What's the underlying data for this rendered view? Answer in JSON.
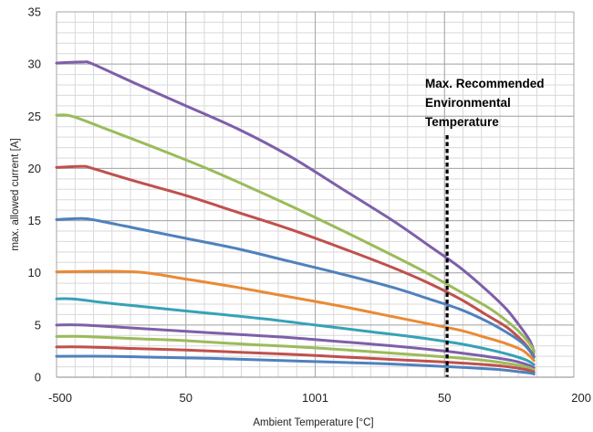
{
  "chart_data": {
    "type": "line",
    "title": "",
    "xlabel": "Ambient Temperature [°C]",
    "ylabel": "max. allowed current [A]",
    "xlim": [
      0,
      100
    ],
    "ylim": [
      0,
      35
    ],
    "x_tick_labels": [
      "-500",
      "50",
      "1001",
      "50",
      "200"
    ],
    "y_ticks": [
      0,
      5,
      10,
      15,
      20,
      25,
      30,
      35
    ],
    "grid": true,
    "legend": "none",
    "annotation": {
      "lines": [
        "Max. Recommended",
        "Environmental",
        "Temperature"
      ],
      "x": 75.5,
      "style": "dotted vertical line"
    },
    "series": [
      {
        "color": "#7e5fa9",
        "points": [
          [
            0,
            30.1
          ],
          [
            5,
            30.2
          ],
          [
            7,
            30
          ],
          [
            15,
            28.2
          ],
          [
            25,
            26
          ],
          [
            35,
            23.8
          ],
          [
            45,
            21.2
          ],
          [
            55,
            18.1
          ],
          [
            65,
            15
          ],
          [
            72,
            12.6
          ],
          [
            78,
            10.5
          ],
          [
            83,
            8.4
          ],
          [
            87,
            6.5
          ],
          [
            90,
            4.6
          ],
          [
            91.5,
            3.5
          ],
          [
            92.3,
            2.5
          ]
        ]
      },
      {
        "color": "#9bbb59",
        "points": [
          [
            0,
            25.1
          ],
          [
            3,
            25
          ],
          [
            10,
            23.7
          ],
          [
            20,
            21.8
          ],
          [
            30,
            19.8
          ],
          [
            40,
            17.6
          ],
          [
            50,
            15.3
          ],
          [
            60,
            12.9
          ],
          [
            70,
            10.4
          ],
          [
            78,
            8.2
          ],
          [
            84,
            6.5
          ],
          [
            88,
            5
          ],
          [
            90.5,
            3.8
          ],
          [
            92,
            2.8
          ],
          [
            92.3,
            2.3
          ]
        ]
      },
      {
        "color": "#c0504d",
        "points": [
          [
            0,
            20.1
          ],
          [
            5,
            20.2
          ],
          [
            7,
            20
          ],
          [
            15,
            18.8
          ],
          [
            25,
            17.4
          ],
          [
            35,
            15.8
          ],
          [
            45,
            14.2
          ],
          [
            55,
            12.4
          ],
          [
            65,
            10.5
          ],
          [
            72,
            9
          ],
          [
            78,
            7.5
          ],
          [
            83,
            6
          ],
          [
            87,
            4.8
          ],
          [
            90,
            3.5
          ],
          [
            91.5,
            2.6
          ],
          [
            92.3,
            2
          ]
        ]
      },
      {
        "color": "#4f81bd",
        "points": [
          [
            0,
            15.1
          ],
          [
            5,
            15.2
          ],
          [
            8,
            15
          ],
          [
            15,
            14.3
          ],
          [
            25,
            13.3
          ],
          [
            35,
            12.3
          ],
          [
            45,
            11.1
          ],
          [
            55,
            9.9
          ],
          [
            65,
            8.6
          ],
          [
            72,
            7.5
          ],
          [
            78,
            6.5
          ],
          [
            83,
            5.4
          ],
          [
            87,
            4.3
          ],
          [
            90,
            3.3
          ],
          [
            91.5,
            2.5
          ],
          [
            92.3,
            1.9
          ]
        ]
      },
      {
        "color": "#e98a36",
        "points": [
          [
            0,
            10.1
          ],
          [
            15,
            10.1
          ],
          [
            25,
            9.4
          ],
          [
            35,
            8.6
          ],
          [
            45,
            7.7
          ],
          [
            55,
            6.8
          ],
          [
            65,
            5.8
          ],
          [
            72,
            5.1
          ],
          [
            78,
            4.5
          ],
          [
            83,
            3.8
          ],
          [
            87,
            3.2
          ],
          [
            90,
            2.6
          ],
          [
            91.5,
            2
          ],
          [
            92.3,
            1.6
          ]
        ]
      },
      {
        "color": "#36a2b6",
        "points": [
          [
            0,
            7.5
          ],
          [
            3,
            7.5
          ],
          [
            10,
            7.1
          ],
          [
            20,
            6.6
          ],
          [
            30,
            6.1
          ],
          [
            40,
            5.6
          ],
          [
            50,
            5
          ],
          [
            60,
            4.4
          ],
          [
            70,
            3.8
          ],
          [
            78,
            3.2
          ],
          [
            84,
            2.6
          ],
          [
            88,
            2.1
          ],
          [
            91,
            1.6
          ],
          [
            92.3,
            1.2
          ]
        ]
      },
      {
        "color": "#7e5fa9",
        "points": [
          [
            0,
            5
          ],
          [
            5,
            5
          ],
          [
            15,
            4.7
          ],
          [
            25,
            4.4
          ],
          [
            35,
            4.1
          ],
          [
            45,
            3.8
          ],
          [
            55,
            3.4
          ],
          [
            65,
            3
          ],
          [
            75,
            2.5
          ],
          [
            83,
            2
          ],
          [
            88,
            1.6
          ],
          [
            91,
            1.2
          ],
          [
            92.3,
            0.9
          ]
        ]
      },
      {
        "color": "#9bbb59",
        "points": [
          [
            0,
            3.9
          ],
          [
            5,
            3.9
          ],
          [
            15,
            3.7
          ],
          [
            25,
            3.5
          ],
          [
            35,
            3.2
          ],
          [
            45,
            2.95
          ],
          [
            55,
            2.65
          ],
          [
            65,
            2.3
          ],
          [
            75,
            1.95
          ],
          [
            83,
            1.6
          ],
          [
            88,
            1.25
          ],
          [
            91,
            0.95
          ],
          [
            92.3,
            0.7
          ]
        ]
      },
      {
        "color": "#c0504d",
        "points": [
          [
            0,
            2.9
          ],
          [
            5,
            2.9
          ],
          [
            15,
            2.75
          ],
          [
            25,
            2.6
          ],
          [
            35,
            2.4
          ],
          [
            45,
            2.2
          ],
          [
            55,
            1.95
          ],
          [
            65,
            1.7
          ],
          [
            75,
            1.45
          ],
          [
            83,
            1.2
          ],
          [
            88,
            0.95
          ],
          [
            91,
            0.7
          ],
          [
            92.3,
            0.5
          ]
        ]
      },
      {
        "color": "#4f81bd",
        "points": [
          [
            0,
            2
          ],
          [
            10,
            2
          ],
          [
            20,
            1.9
          ],
          [
            30,
            1.8
          ],
          [
            40,
            1.65
          ],
          [
            50,
            1.5
          ],
          [
            60,
            1.35
          ],
          [
            70,
            1.15
          ],
          [
            78,
            0.95
          ],
          [
            85,
            0.75
          ],
          [
            89,
            0.55
          ],
          [
            91.5,
            0.4
          ],
          [
            92.3,
            0.3
          ]
        ]
      }
    ]
  }
}
